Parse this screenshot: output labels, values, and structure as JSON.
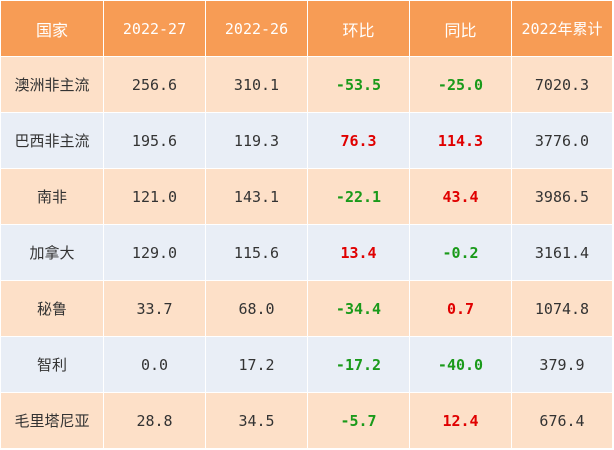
{
  "table": {
    "headers": [
      "国家",
      "2022-27",
      "2022-26",
      "环比",
      "同比",
      "2022年累计"
    ],
    "rows": [
      {
        "country": "澳洲非主流",
        "w27": "256.6",
        "w26": "310.1",
        "mom": "-53.5",
        "yoy": "-25.0",
        "cumulative": "7020.3"
      },
      {
        "country": "巴西非主流",
        "w27": "195.6",
        "w26": "119.3",
        "mom": "76.3",
        "yoy": "114.3",
        "cumulative": "3776.0"
      },
      {
        "country": "南非",
        "w27": "121.0",
        "w26": "143.1",
        "mom": "-22.1",
        "yoy": "43.4",
        "cumulative": "3986.5"
      },
      {
        "country": "加拿大",
        "w27": "129.0",
        "w26": "115.6",
        "mom": "13.4",
        "yoy": "-0.2",
        "cumulative": "3161.4"
      },
      {
        "country": "秘鲁",
        "w27": "33.7",
        "w26": "68.0",
        "mom": "-34.4",
        "yoy": "0.7",
        "cumulative": "1074.8"
      },
      {
        "country": "智利",
        "w27": "0.0",
        "w26": "17.2",
        "mom": "-17.2",
        "yoy": "-40.0",
        "cumulative": "379.9"
      },
      {
        "country": "毛里塔尼亚",
        "w27": "28.8",
        "w26": "34.5",
        "mom": "-5.7",
        "yoy": "12.4",
        "cumulative": "676.4"
      }
    ]
  },
  "colors": {
    "header_bg": "#f79c55",
    "row_odd_bg": "#fde0c8",
    "row_even_bg": "#e9eef6",
    "positive": "#e00000",
    "negative": "#1a9a1a"
  }
}
